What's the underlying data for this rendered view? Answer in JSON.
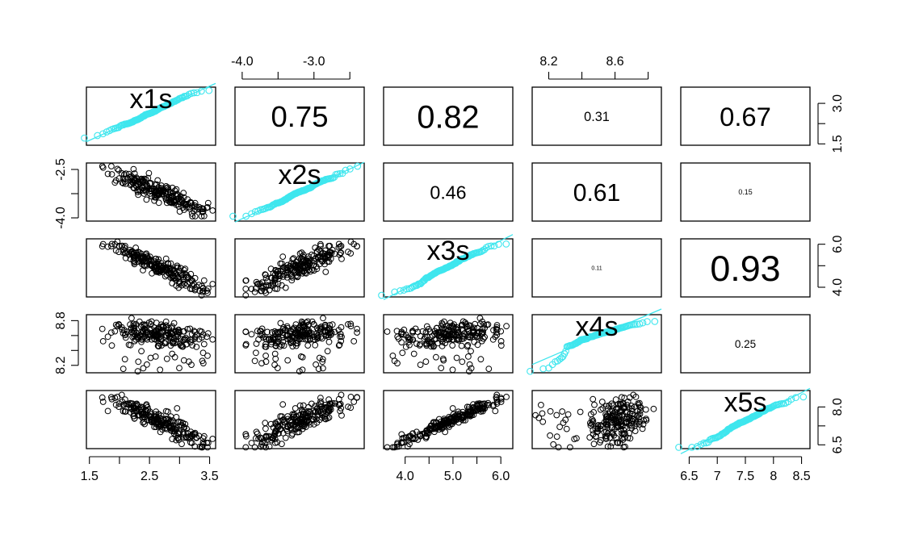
{
  "chart_data": {
    "type": "scatter-matrix",
    "title": "",
    "colors": {
      "axis": "#000000",
      "points": "#000000",
      "qq": "#3fe6ee"
    },
    "variables": [
      "x1s",
      "x2s",
      "x3s",
      "x4s",
      "x5s"
    ],
    "ranges": {
      "x1s": [
        1.45,
        3.6
      ],
      "x2s": [
        -4.1,
        -2.3
      ],
      "x3s": [
        3.55,
        6.25
      ],
      "x4s": [
        8.1,
        8.88
      ],
      "x5s": [
        6.35,
        8.65
      ]
    },
    "axis_ticks": {
      "top": [
        {
          "col": 1,
          "values": [
            -4.0,
            -3.5,
            -3.0,
            -2.5
          ],
          "labels": [
            "-4.0",
            "",
            "-3.0",
            ""
          ]
        },
        {
          "col": 3,
          "values": [
            8.2,
            8.4,
            8.6,
            8.8
          ],
          "labels": [
            "8.2",
            "",
            "8.6",
            ""
          ]
        }
      ],
      "bottom": [
        {
          "col": 0,
          "values": [
            1.5,
            2.0,
            2.5,
            3.0,
            3.5
          ],
          "labels": [
            "1.5",
            "",
            "2.5",
            "",
            "3.5"
          ]
        },
        {
          "col": 2,
          "values": [
            4.0,
            4.5,
            5.0,
            5.5,
            6.0
          ],
          "labels": [
            "4.0",
            "",
            "5.0",
            "",
            "6.0"
          ]
        },
        {
          "col": 4,
          "values": [
            6.5,
            7.0,
            7.5,
            8.0,
            8.5
          ],
          "labels": [
            "6.5",
            "7",
            "7.5",
            "8",
            "8.5"
          ]
        }
      ],
      "left": [
        {
          "row": 1,
          "values": [
            -2.5,
            -3.25,
            -4.0
          ],
          "labels": [
            "-2.5",
            "",
            "-4.0"
          ]
        },
        {
          "row": 3,
          "values": [
            8.8,
            8.6,
            8.4,
            8.2
          ],
          "labels": [
            "8.8",
            "",
            "",
            "8.2"
          ]
        }
      ],
      "right": [
        {
          "row": 0,
          "values": [
            3.0,
            2.25,
            1.5
          ],
          "labels": [
            "3.0",
            "",
            "1.5"
          ]
        },
        {
          "row": 2,
          "values": [
            6.0,
            5.0,
            4.0
          ],
          "labels": [
            "6.0",
            "",
            "4.0"
          ]
        },
        {
          "row": 4,
          "values": [
            8.0,
            7.25,
            6.5
          ],
          "labels": [
            "8.0",
            "",
            "6.5"
          ]
        }
      ]
    },
    "correlations": [
      {
        "row": 0,
        "col": 1,
        "value": "0.75"
      },
      {
        "row": 0,
        "col": 2,
        "value": "0.82"
      },
      {
        "row": 0,
        "col": 3,
        "value": "0.31"
      },
      {
        "row": 0,
        "col": 4,
        "value": "0.67"
      },
      {
        "row": 1,
        "col": 2,
        "value": "0.46"
      },
      {
        "row": 1,
        "col": 3,
        "value": "0.61"
      },
      {
        "row": 1,
        "col": 4,
        "value": "0.15"
      },
      {
        "row": 2,
        "col": 3,
        "value": "0.11"
      },
      {
        "row": 2,
        "col": 4,
        "value": "0.93"
      },
      {
        "row": 3,
        "col": 4,
        "value": "0.25"
      }
    ],
    "scatter_samples": {
      "n": 220,
      "note": "approximate reconstruction of point clouds"
    }
  }
}
